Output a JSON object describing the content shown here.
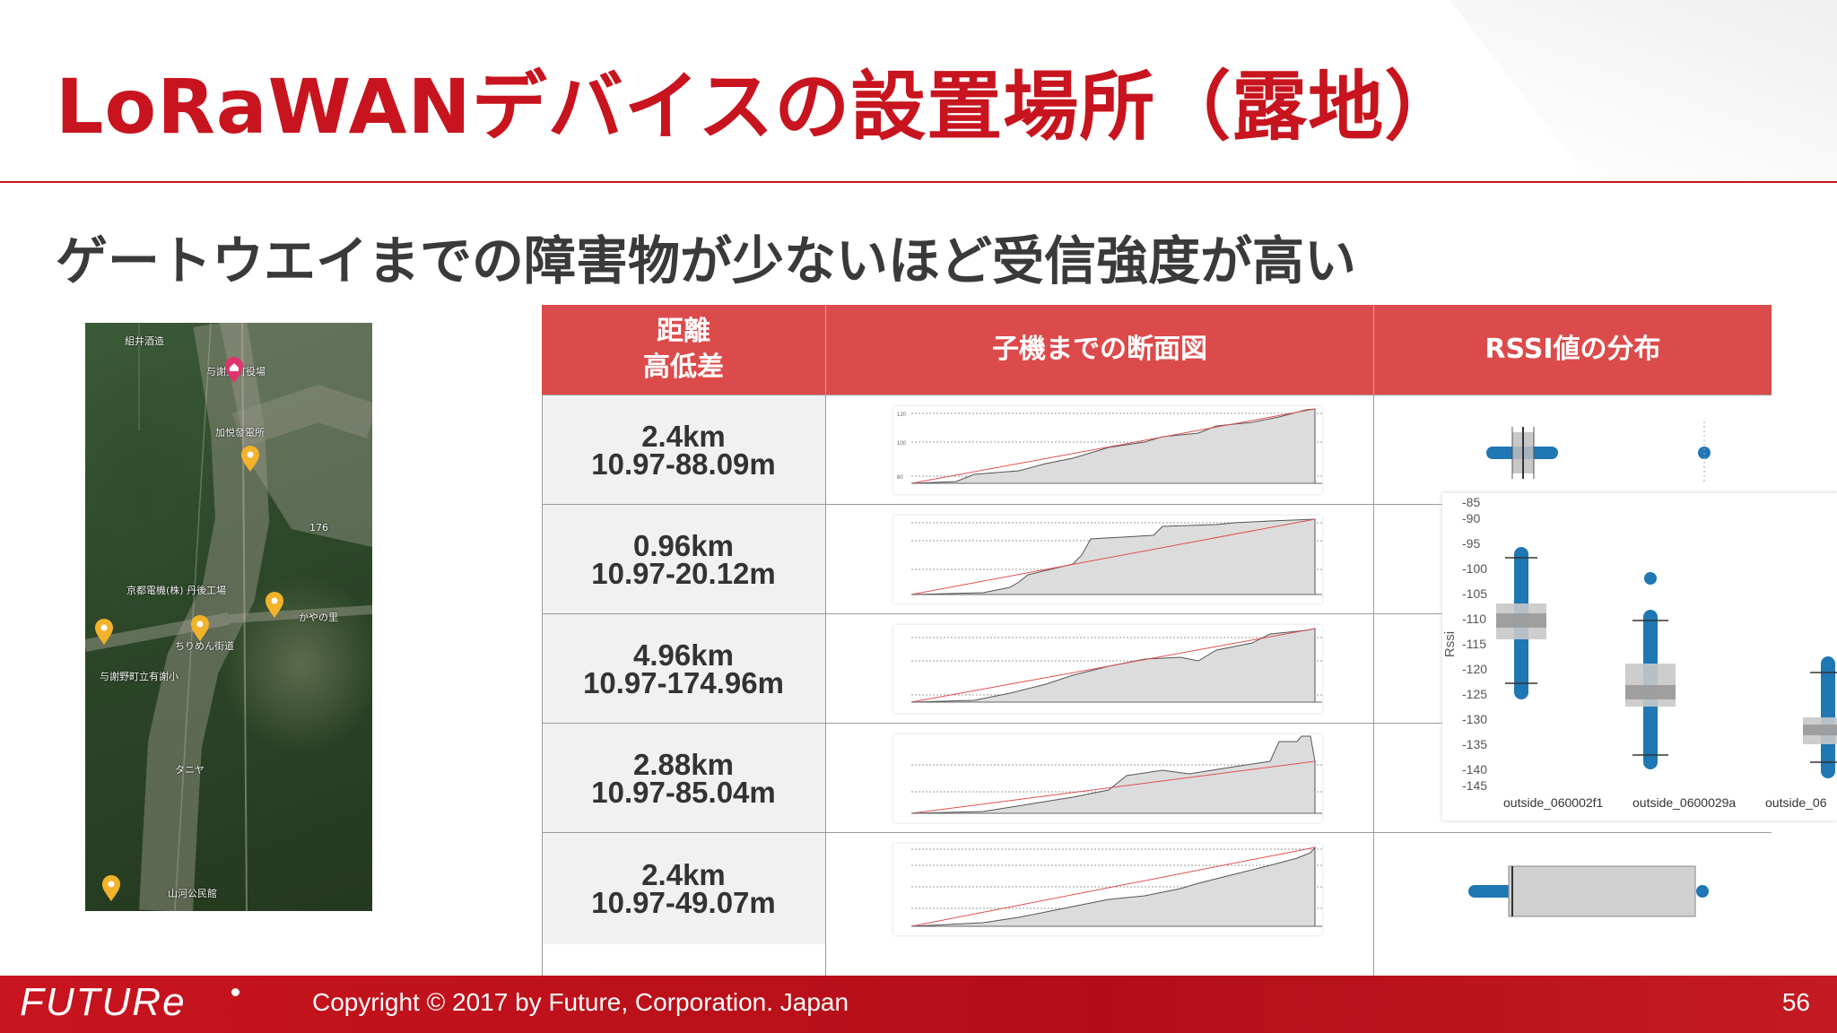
{
  "slide": {
    "title": "LoRaWANデバイスの設置場所（露地）",
    "subtitle": "ゲートウエイまでの障害物が少ないほど受信強度が高い"
  },
  "map": {
    "labels": [
      "組井酒造",
      "与謝野町役場",
      "加悦發電所",
      "京都電機(株) 丹後工場",
      "与謝野町立有謝小",
      "山河公民館",
      "タニヤ",
      "ちりめん街道",
      "かやの里",
      "176"
    ],
    "pin_color": "#f2b22a",
    "home_pin_color": "#e0336e"
  },
  "table": {
    "headers": {
      "distance_line1": "距離",
      "distance_line2": "高低差",
      "profile": "子機までの断面図",
      "rssi": "RSSI値の分布"
    },
    "rows": [
      {
        "distance": "2.4km",
        "height_range": "10.97-88.09m"
      },
      {
        "distance": "0.96km",
        "height_range": "10.97-20.12m"
      },
      {
        "distance": "4.96km",
        "height_range": "10.97-174.96m"
      },
      {
        "distance": "2.88km",
        "height_range": "10.97-85.04m"
      },
      {
        "distance": "2.4km",
        "height_range": "10.97-49.07m"
      }
    ]
  },
  "rssi_chart": {
    "ylabel": "Rssi",
    "yticks": [
      "-85",
      "-90",
      "-95",
      "-100",
      "-105",
      "-110",
      "-115",
      "-120",
      "-125",
      "-130",
      "-135",
      "-140",
      "-145"
    ],
    "categories": [
      "outside_060002f1",
      "outside_0600029a",
      "outside_06"
    ],
    "box_color": "#1f77b4"
  },
  "footer": {
    "logo": "FUTURe",
    "copyright": "Copyright © 2017 by Future, Corporation. Japan",
    "page_number": "56"
  }
}
